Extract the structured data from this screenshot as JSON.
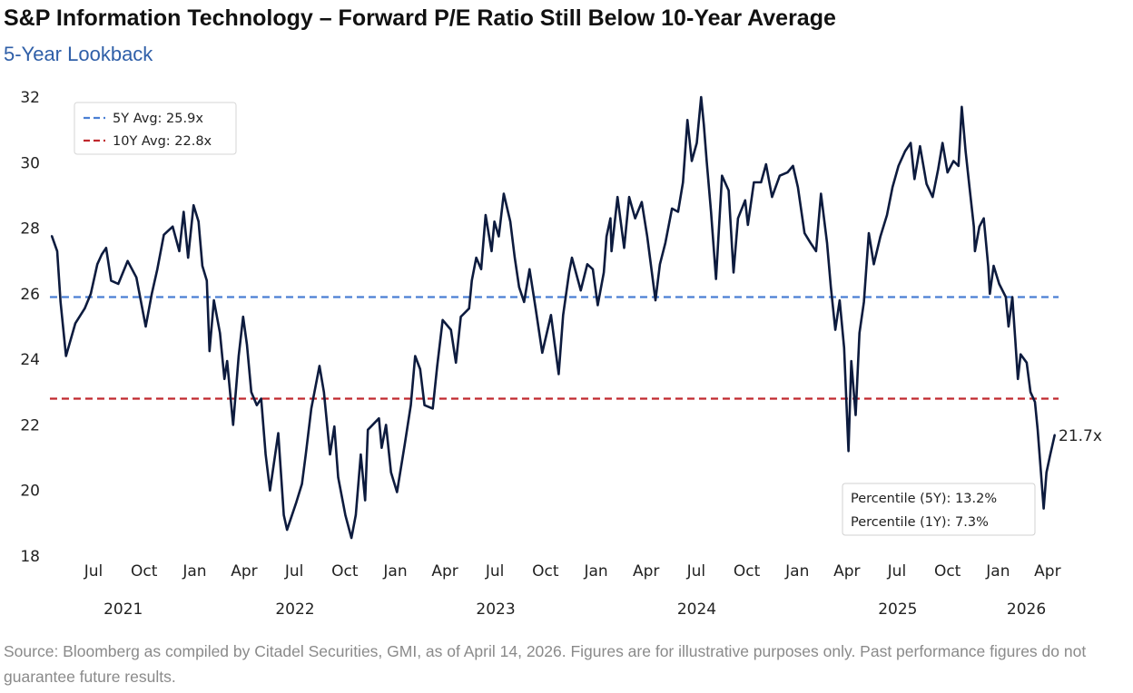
{
  "title": "S&P Information Technology – Forward P/E Ratio Still Below 10-Year Average",
  "subtitle": "5-Year Lookback",
  "source": "Source: Bloomberg as compiled by Citadel Securities, GMI, as of April 14, 2026. Figures are for illustrative purposes only. Past performance figures do not guarantee future results.",
  "chart_data": {
    "type": "line",
    "xlabel": "",
    "ylabel": "",
    "ylim": [
      18,
      32
    ],
    "yticks": [
      "18",
      "20",
      "22",
      "24",
      "26",
      "28",
      "30",
      "32"
    ],
    "xlim": [
      "2021-04-16",
      "2026-04-14"
    ],
    "month_ticks": [
      {
        "date": "2021-07-01",
        "label": "Jul"
      },
      {
        "date": "2021-10-01",
        "label": "Oct"
      },
      {
        "date": "2022-01-01",
        "label": "Jan"
      },
      {
        "date": "2022-04-01",
        "label": "Apr"
      },
      {
        "date": "2022-07-01",
        "label": "Jul"
      },
      {
        "date": "2022-10-01",
        "label": "Oct"
      },
      {
        "date": "2023-01-01",
        "label": "Jan"
      },
      {
        "date": "2023-04-01",
        "label": "Apr"
      },
      {
        "date": "2023-07-01",
        "label": "Jul"
      },
      {
        "date": "2023-10-01",
        "label": "Oct"
      },
      {
        "date": "2024-01-01",
        "label": "Jan"
      },
      {
        "date": "2024-04-01",
        "label": "Apr"
      },
      {
        "date": "2024-07-01",
        "label": "Jul"
      },
      {
        "date": "2024-10-01",
        "label": "Oct"
      },
      {
        "date": "2025-01-01",
        "label": "Jan"
      },
      {
        "date": "2025-04-01",
        "label": "Apr"
      },
      {
        "date": "2025-07-01",
        "label": "Jul"
      },
      {
        "date": "2025-10-01",
        "label": "Oct"
      },
      {
        "date": "2026-01-01",
        "label": "Jan"
      },
      {
        "date": "2026-04-01",
        "label": "Apr"
      }
    ],
    "year_labels": [
      "2021",
      "2022",
      "2023",
      "2024",
      "2025",
      "2026"
    ],
    "grid": false,
    "legend": {
      "placement": "top-left",
      "entries": [
        {
          "label": "5Y Avg: 25.9x",
          "color": "#4a7fd4",
          "style": "dashed"
        },
        {
          "label": "10Y Avg: 22.8x",
          "color": "#c0282d",
          "style": "dashed"
        }
      ]
    },
    "reference_lines": [
      {
        "value": 25.9,
        "color": "#4a7fd4"
      },
      {
        "value": 22.8,
        "color": "#c0282d"
      }
    ],
    "last_value_label": "21.7x",
    "annotation_box": {
      "placement": "bottom-right",
      "lines": [
        "Percentile (5Y): 13.2%",
        "Percentile (1Y): 7.3%"
      ]
    },
    "series": [
      {
        "color": "#0d1b3e",
        "points": [
          [
            "2021-04-16",
            27.77
          ],
          [
            "2021-04-26",
            27.3
          ],
          [
            "2021-05-02",
            25.75
          ],
          [
            "2021-05-12",
            24.1
          ],
          [
            "2021-05-29",
            25.1
          ],
          [
            "2021-06-15",
            25.55
          ],
          [
            "2021-06-26",
            26.0
          ],
          [
            "2021-07-08",
            26.9
          ],
          [
            "2021-07-16",
            27.2
          ],
          [
            "2021-07-24",
            27.4
          ],
          [
            "2021-08-02",
            26.4
          ],
          [
            "2021-08-15",
            26.3
          ],
          [
            "2021-09-01",
            27.0
          ],
          [
            "2021-09-17",
            26.5
          ],
          [
            "2021-10-04",
            25.0
          ],
          [
            "2021-10-15",
            26.0
          ],
          [
            "2021-10-25",
            26.75
          ],
          [
            "2021-11-06",
            27.8
          ],
          [
            "2021-11-22",
            28.05
          ],
          [
            "2021-12-04",
            27.3
          ],
          [
            "2021-12-12",
            28.5
          ],
          [
            "2021-12-20",
            27.1
          ],
          [
            "2021-12-30",
            28.7
          ],
          [
            "2022-01-08",
            28.2
          ],
          [
            "2022-01-15",
            26.85
          ],
          [
            "2022-01-23",
            26.4
          ],
          [
            "2022-01-28",
            24.25
          ],
          [
            "2022-02-05",
            25.8
          ],
          [
            "2022-02-16",
            24.8
          ],
          [
            "2022-02-24",
            23.4
          ],
          [
            "2022-03-01",
            23.95
          ],
          [
            "2022-03-12",
            22.0
          ],
          [
            "2022-03-22",
            24.1
          ],
          [
            "2022-03-30",
            25.3
          ],
          [
            "2022-04-06",
            24.45
          ],
          [
            "2022-04-14",
            23.0
          ],
          [
            "2022-04-24",
            22.6
          ],
          [
            "2022-05-02",
            22.8
          ],
          [
            "2022-05-10",
            21.1
          ],
          [
            "2022-05-18",
            20.0
          ],
          [
            "2022-06-02",
            21.75
          ],
          [
            "2022-06-12",
            19.25
          ],
          [
            "2022-06-18",
            18.8
          ],
          [
            "2022-07-05",
            19.65
          ],
          [
            "2022-07-15",
            20.2
          ],
          [
            "2022-07-22",
            21.1
          ],
          [
            "2022-08-01",
            22.5
          ],
          [
            "2022-08-16",
            23.8
          ],
          [
            "2022-08-24",
            23.0
          ],
          [
            "2022-09-04",
            21.1
          ],
          [
            "2022-09-12",
            21.95
          ],
          [
            "2022-09-19",
            20.4
          ],
          [
            "2022-10-02",
            19.25
          ],
          [
            "2022-10-13",
            18.55
          ],
          [
            "2022-10-21",
            19.25
          ],
          [
            "2022-10-30",
            21.1
          ],
          [
            "2022-11-07",
            19.7
          ],
          [
            "2022-11-12",
            21.85
          ],
          [
            "2022-12-02",
            22.2
          ],
          [
            "2022-12-07",
            21.3
          ],
          [
            "2022-12-15",
            22.0
          ],
          [
            "2022-12-24",
            20.55
          ],
          [
            "2023-01-04",
            19.95
          ],
          [
            "2023-01-18",
            21.4
          ],
          [
            "2023-01-29",
            22.6
          ],
          [
            "2023-02-06",
            24.1
          ],
          [
            "2023-02-15",
            23.7
          ],
          [
            "2023-02-23",
            22.6
          ],
          [
            "2023-03-10",
            22.5
          ],
          [
            "2023-03-18",
            23.8
          ],
          [
            "2023-03-28",
            25.2
          ],
          [
            "2023-04-12",
            24.9
          ],
          [
            "2023-04-21",
            23.9
          ],
          [
            "2023-04-30",
            25.3
          ],
          [
            "2023-05-15",
            25.55
          ],
          [
            "2023-05-20",
            26.4
          ],
          [
            "2023-05-28",
            27.1
          ],
          [
            "2023-06-06",
            26.75
          ],
          [
            "2023-06-14",
            28.4
          ],
          [
            "2023-06-25",
            27.3
          ],
          [
            "2023-06-30",
            28.2
          ],
          [
            "2023-07-08",
            27.75
          ],
          [
            "2023-07-17",
            29.05
          ],
          [
            "2023-07-29",
            28.2
          ],
          [
            "2023-08-06",
            27.1
          ],
          [
            "2023-08-14",
            26.2
          ],
          [
            "2023-08-23",
            25.75
          ],
          [
            "2023-09-02",
            26.75
          ],
          [
            "2023-09-13",
            25.55
          ],
          [
            "2023-09-25",
            24.2
          ],
          [
            "2023-10-11",
            25.35
          ],
          [
            "2023-10-25",
            23.55
          ],
          [
            "2023-11-02",
            25.35
          ],
          [
            "2023-11-13",
            26.65
          ],
          [
            "2023-11-18",
            27.1
          ],
          [
            "2023-12-04",
            26.1
          ],
          [
            "2023-12-16",
            26.9
          ],
          [
            "2023-12-26",
            26.75
          ],
          [
            "2024-01-04",
            25.65
          ],
          [
            "2024-01-15",
            26.65
          ],
          [
            "2024-01-20",
            27.75
          ],
          [
            "2024-01-27",
            28.3
          ],
          [
            "2024-01-29",
            27.3
          ],
          [
            "2024-02-09",
            28.95
          ],
          [
            "2024-02-21",
            27.4
          ],
          [
            "2024-03-01",
            28.95
          ],
          [
            "2024-03-12",
            28.3
          ],
          [
            "2024-03-24",
            28.8
          ],
          [
            "2024-04-03",
            27.75
          ],
          [
            "2024-04-18",
            25.8
          ],
          [
            "2024-04-26",
            26.9
          ],
          [
            "2024-05-06",
            27.55
          ],
          [
            "2024-05-18",
            28.6
          ],
          [
            "2024-05-29",
            28.5
          ],
          [
            "2024-06-07",
            29.4
          ],
          [
            "2024-06-15",
            31.3
          ],
          [
            "2024-06-23",
            30.05
          ],
          [
            "2024-07-02",
            30.6
          ],
          [
            "2024-07-10",
            32.0
          ],
          [
            "2024-07-15",
            31.15
          ],
          [
            "2024-07-20",
            30.05
          ],
          [
            "2024-07-28",
            28.5
          ],
          [
            "2024-08-06",
            26.45
          ],
          [
            "2024-08-17",
            29.6
          ],
          [
            "2024-08-29",
            29.15
          ],
          [
            "2024-09-07",
            26.65
          ],
          [
            "2024-09-15",
            28.3
          ],
          [
            "2024-09-28",
            28.85
          ],
          [
            "2024-10-03",
            28.1
          ],
          [
            "2024-10-14",
            29.4
          ],
          [
            "2024-10-27",
            29.4
          ],
          [
            "2024-11-05",
            29.95
          ],
          [
            "2024-11-16",
            28.95
          ],
          [
            "2024-11-30",
            29.6
          ],
          [
            "2024-12-14",
            29.7
          ],
          [
            "2024-12-24",
            29.9
          ],
          [
            "2025-01-02",
            29.25
          ],
          [
            "2025-01-14",
            27.85
          ],
          [
            "2025-01-25",
            27.55
          ],
          [
            "2025-02-04",
            27.3
          ],
          [
            "2025-02-13",
            29.05
          ],
          [
            "2025-02-24",
            27.55
          ],
          [
            "2025-03-03",
            26.2
          ],
          [
            "2025-03-11",
            24.9
          ],
          [
            "2025-03-19",
            25.8
          ],
          [
            "2025-03-27",
            24.35
          ],
          [
            "2025-04-04",
            21.2
          ],
          [
            "2025-04-09",
            23.95
          ],
          [
            "2025-04-17",
            22.3
          ],
          [
            "2025-04-24",
            24.8
          ],
          [
            "2025-05-02",
            25.75
          ],
          [
            "2025-05-11",
            27.85
          ],
          [
            "2025-05-20",
            26.9
          ],
          [
            "2025-06-01",
            27.75
          ],
          [
            "2025-06-13",
            28.4
          ],
          [
            "2025-06-23",
            29.25
          ],
          [
            "2025-07-04",
            29.9
          ],
          [
            "2025-07-16",
            30.35
          ],
          [
            "2025-07-26",
            30.6
          ],
          [
            "2025-08-02",
            29.5
          ],
          [
            "2025-08-12",
            30.5
          ],
          [
            "2025-08-24",
            29.35
          ],
          [
            "2025-09-04",
            28.95
          ],
          [
            "2025-09-14",
            29.8
          ],
          [
            "2025-09-22",
            30.6
          ],
          [
            "2025-10-01",
            29.7
          ],
          [
            "2025-10-12",
            30.05
          ],
          [
            "2025-10-21",
            29.9
          ],
          [
            "2025-10-27",
            31.7
          ],
          [
            "2025-11-03",
            30.35
          ],
          [
            "2025-11-10",
            29.25
          ],
          [
            "2025-11-18",
            28.05
          ],
          [
            "2025-11-20",
            27.3
          ],
          [
            "2025-11-28",
            28.05
          ],
          [
            "2025-12-06",
            28.3
          ],
          [
            "2025-12-14",
            26.85
          ],
          [
            "2025-12-17",
            26.0
          ],
          [
            "2025-12-24",
            26.85
          ],
          [
            "2026-01-03",
            26.3
          ],
          [
            "2026-01-15",
            25.9
          ],
          [
            "2026-01-20",
            25.0
          ],
          [
            "2026-01-27",
            25.9
          ],
          [
            "2026-02-01",
            24.65
          ],
          [
            "2026-02-06",
            23.4
          ],
          [
            "2026-02-11",
            24.15
          ],
          [
            "2026-02-22",
            23.9
          ],
          [
            "2026-03-01",
            23.0
          ],
          [
            "2026-03-09",
            22.7
          ],
          [
            "2026-03-14",
            21.85
          ],
          [
            "2026-03-20",
            20.55
          ],
          [
            "2026-03-25",
            19.45
          ],
          [
            "2026-03-30",
            20.55
          ],
          [
            "2026-04-06",
            21.1
          ],
          [
            "2026-04-14",
            21.7
          ]
        ]
      }
    ]
  }
}
